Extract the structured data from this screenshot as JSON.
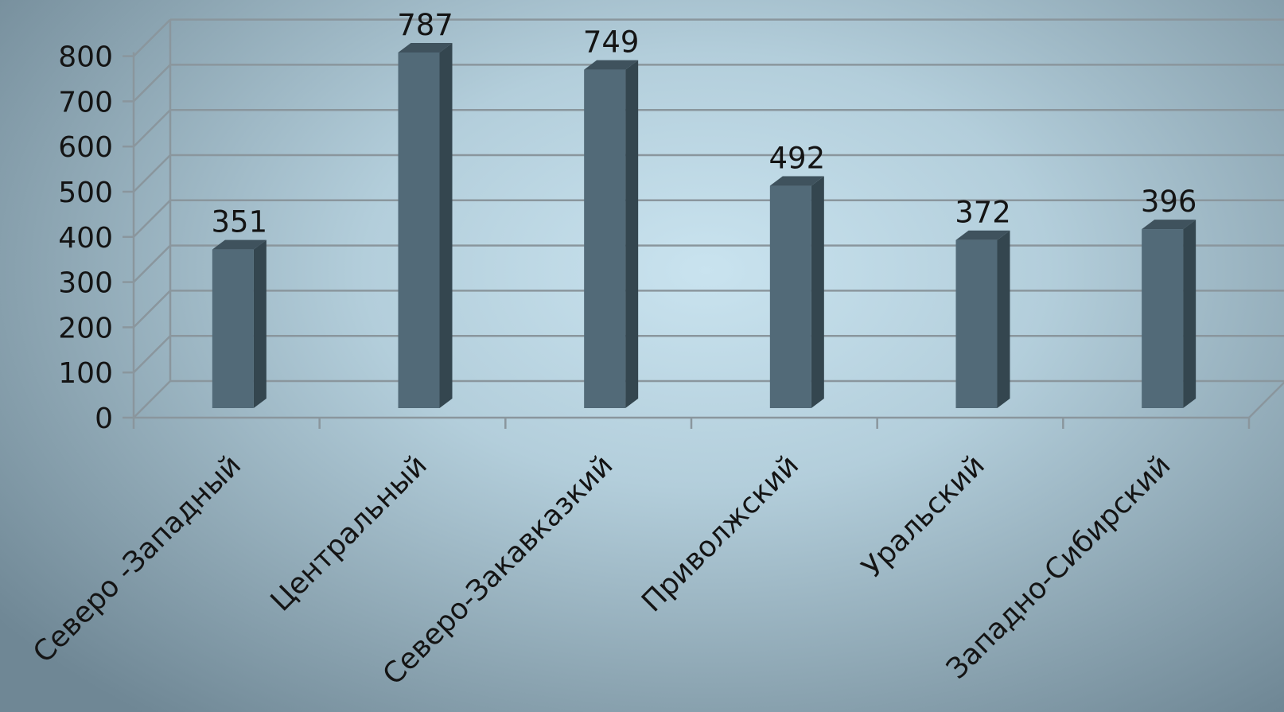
{
  "chart_data": {
    "type": "bar",
    "categories": [
      "Северо -Западный",
      "Центральный",
      "Северо-Закавказкий",
      "Приволжский",
      "Уральский",
      "Западно-Сибирский"
    ],
    "values": [
      351,
      787,
      749,
      492,
      372,
      396
    ],
    "data_labels": [
      "351",
      "787",
      "749",
      "492",
      "372",
      "396"
    ],
    "y_ticks": [
      "0",
      "100",
      "200",
      "300",
      "400",
      "500",
      "600",
      "700",
      "800"
    ],
    "ylim": [
      0,
      800
    ],
    "grid": true,
    "style": "3d-column",
    "legend": "none",
    "title": "",
    "xlabel": "",
    "ylabel": ""
  },
  "colors": {
    "bar_front": "#526a78",
    "bar_side": "#34464f",
    "bar_top": "#3f525d",
    "grid": "#8a969d",
    "text": "#141414"
  }
}
